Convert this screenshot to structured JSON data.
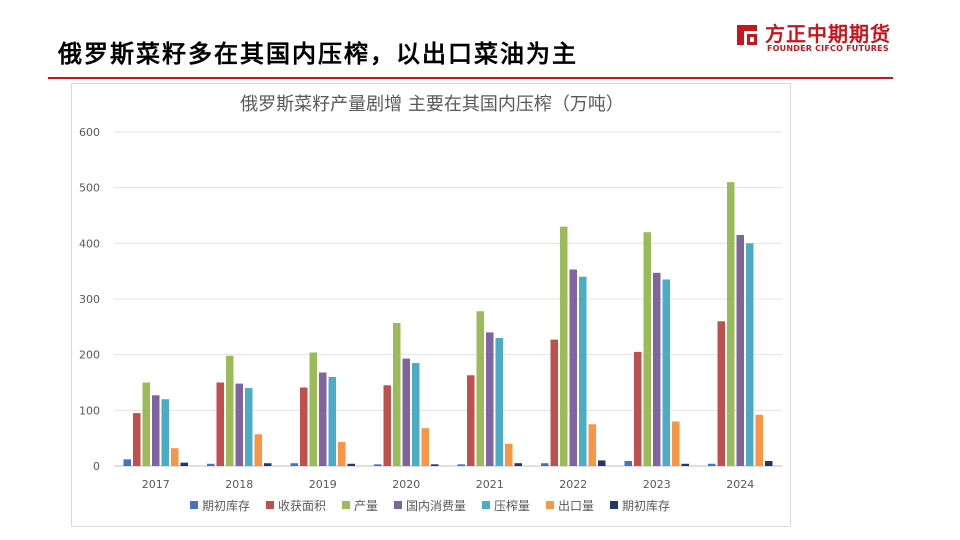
{
  "slide": {
    "title": "俄罗斯菜籽多在其国内压榨，以出口菜油为主"
  },
  "brand": {
    "name_cn": "方正中期期货",
    "name_en": "FOUNDER CIFCO FUTURES",
    "color": "#c8161d",
    "icon": "founder-logo-icon"
  },
  "chart_data": {
    "type": "bar",
    "title": "俄罗斯菜籽产量剧增 主要在其国内压榨（万吨）",
    "categories": [
      "2017",
      "2018",
      "2019",
      "2020",
      "2021",
      "2022",
      "2023",
      "2024"
    ],
    "ylim": [
      0,
      600
    ],
    "yticks": [
      0,
      100,
      200,
      300,
      400,
      500,
      600
    ],
    "grid": true,
    "legend_position": "bottom",
    "series": [
      {
        "name": "期初库存",
        "color": "#4472c4",
        "values": [
          12,
          4,
          5,
          3,
          3,
          5,
          9,
          4
        ]
      },
      {
        "name": "收获面积",
        "color": "#c0504d",
        "values": [
          95,
          150,
          141,
          145,
          163,
          227,
          205,
          260
        ]
      },
      {
        "name": "产量",
        "color": "#9bbb59",
        "values": [
          150,
          198,
          204,
          257,
          278,
          430,
          420,
          510
        ]
      },
      {
        "name": "国内消费量",
        "color": "#8064a2",
        "values": [
          127,
          148,
          168,
          193,
          240,
          353,
          347,
          415
        ]
      },
      {
        "name": "压榨量",
        "color": "#4bacc6",
        "values": [
          120,
          140,
          160,
          185,
          230,
          340,
          335,
          400
        ]
      },
      {
        "name": "出口量",
        "color": "#f79646",
        "values": [
          32,
          57,
          43,
          68,
          40,
          75,
          80,
          92
        ]
      },
      {
        "name": "期初库存",
        "color": "#1f3864",
        "values": [
          6,
          5,
          4,
          3,
          5,
          10,
          4,
          9
        ]
      }
    ]
  }
}
